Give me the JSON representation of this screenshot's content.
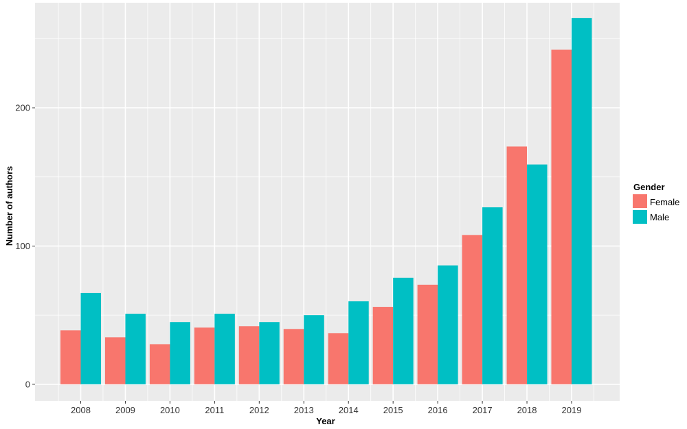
{
  "chart_data": {
    "type": "bar",
    "title": "",
    "xlabel": "Year",
    "ylabel": "Number of authors",
    "categories": [
      "2008",
      "2009",
      "2010",
      "2011",
      "2012",
      "2013",
      "2014",
      "2015",
      "2016",
      "2017",
      "2018",
      "2019"
    ],
    "series": [
      {
        "name": "Female",
        "color": "#F8766D",
        "values": [
          39,
          34,
          29,
          41,
          42,
          40,
          37,
          56,
          72,
          108,
          172,
          242
        ]
      },
      {
        "name": "Male",
        "color": "#00BFC4",
        "values": [
          66,
          51,
          45,
          51,
          45,
          50,
          60,
          77,
          86,
          128,
          159,
          265
        ]
      }
    ],
    "ylim": [
      -12,
      276
    ],
    "yticks": [
      0,
      100,
      200
    ],
    "grid": true,
    "legend": {
      "title": "Gender",
      "placement": "right"
    },
    "panel_background": "#EBEBEB"
  }
}
